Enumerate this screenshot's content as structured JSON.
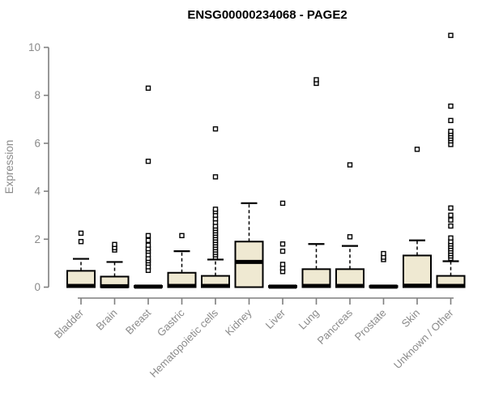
{
  "title": "ENSG00000234068 - PAGE2",
  "chart_data": {
    "type": "boxplot",
    "title": "ENSG00000234068 - PAGE2",
    "xlabel": "",
    "ylabel": "Expression",
    "ylim": [
      0,
      10
    ],
    "yticks": [
      0,
      2,
      4,
      6,
      8,
      10
    ],
    "grid": false,
    "legend": "none",
    "box_fill": "#efe9d2",
    "box_stroke": "#000000",
    "axis_color": "#7f7f7f",
    "label_color": "#8a8a8a",
    "categories": [
      "Bladder",
      "Brain",
      "Breast",
      "Gastric",
      "Hematopoietic cells",
      "Kidney",
      "Liver",
      "Lung",
      "Pancreas",
      "Prostate",
      "Skin",
      "Unknown / Other"
    ],
    "series": [
      {
        "name": "Bladder",
        "min": 0,
        "q1": 0,
        "median": 0.05,
        "q3": 0.68,
        "whisker_high": 1.18,
        "outliers": [
          1.9,
          2.25
        ]
      },
      {
        "name": "Brain",
        "min": 0,
        "q1": 0,
        "median": 0.04,
        "q3": 0.44,
        "whisker_high": 1.05,
        "outliers": [
          1.55,
          1.65,
          1.78
        ]
      },
      {
        "name": "Breast",
        "min": 0,
        "q1": 0,
        "median": 0.02,
        "q3": 0.05,
        "whisker_high": 0.05,
        "outliers": [
          0.7,
          0.85,
          1.0,
          1.1,
          1.2,
          1.35,
          1.5,
          1.6,
          1.75,
          1.95,
          2.15,
          5.25,
          8.3
        ]
      },
      {
        "name": "Gastric",
        "min": 0,
        "q1": 0,
        "median": 0.05,
        "q3": 0.6,
        "whisker_high": 1.5,
        "outliers": [
          2.15
        ]
      },
      {
        "name": "Hematopoietic cells",
        "min": 0,
        "q1": 0,
        "median": 0.05,
        "q3": 0.47,
        "whisker_high": 1.15,
        "outliers": [
          1.25,
          1.35,
          1.45,
          1.55,
          1.65,
          1.75,
          1.85,
          1.95,
          2.05,
          2.15,
          2.25,
          2.35,
          2.45,
          2.55,
          2.7,
          2.85,
          3.0,
          3.15,
          3.25,
          4.6,
          6.6
        ]
      },
      {
        "name": "Kidney",
        "min": 0,
        "q1": 0,
        "median": 1.05,
        "q3": 1.9,
        "whisker_high": 3.5,
        "outliers": []
      },
      {
        "name": "Liver",
        "min": 0,
        "q1": 0,
        "median": 0.02,
        "q3": 0.05,
        "whisker_high": 0.05,
        "outliers": [
          0.65,
          0.8,
          0.95,
          1.5,
          1.8,
          3.5
        ]
      },
      {
        "name": "Lung",
        "min": 0,
        "q1": 0,
        "median": 0.05,
        "q3": 0.75,
        "whisker_high": 1.8,
        "outliers": [
          8.5,
          8.65
        ]
      },
      {
        "name": "Pancreas",
        "min": 0,
        "q1": 0,
        "median": 0.05,
        "q3": 0.75,
        "whisker_high": 1.72,
        "outliers": [
          2.1,
          5.1
        ]
      },
      {
        "name": "Prostate",
        "min": 0,
        "q1": 0,
        "median": 0.02,
        "q3": 0.05,
        "whisker_high": 0.05,
        "outliers": [
          1.15,
          1.25,
          1.4
        ]
      },
      {
        "name": "Skin",
        "min": 0,
        "q1": 0,
        "median": 0.06,
        "q3": 1.32,
        "whisker_high": 1.95,
        "outliers": [
          5.75
        ]
      },
      {
        "name": "Unknown / Other",
        "min": 0,
        "q1": 0,
        "median": 0.05,
        "q3": 0.47,
        "whisker_high": 1.08,
        "outliers": [
          1.2,
          1.3,
          1.4,
          1.5,
          1.6,
          1.7,
          1.8,
          1.9,
          2.05,
          2.55,
          2.8,
          3.0,
          3.3,
          5.95,
          6.1,
          6.2,
          6.3,
          6.4,
          6.5,
          6.95,
          7.55,
          10.5
        ]
      }
    ]
  }
}
